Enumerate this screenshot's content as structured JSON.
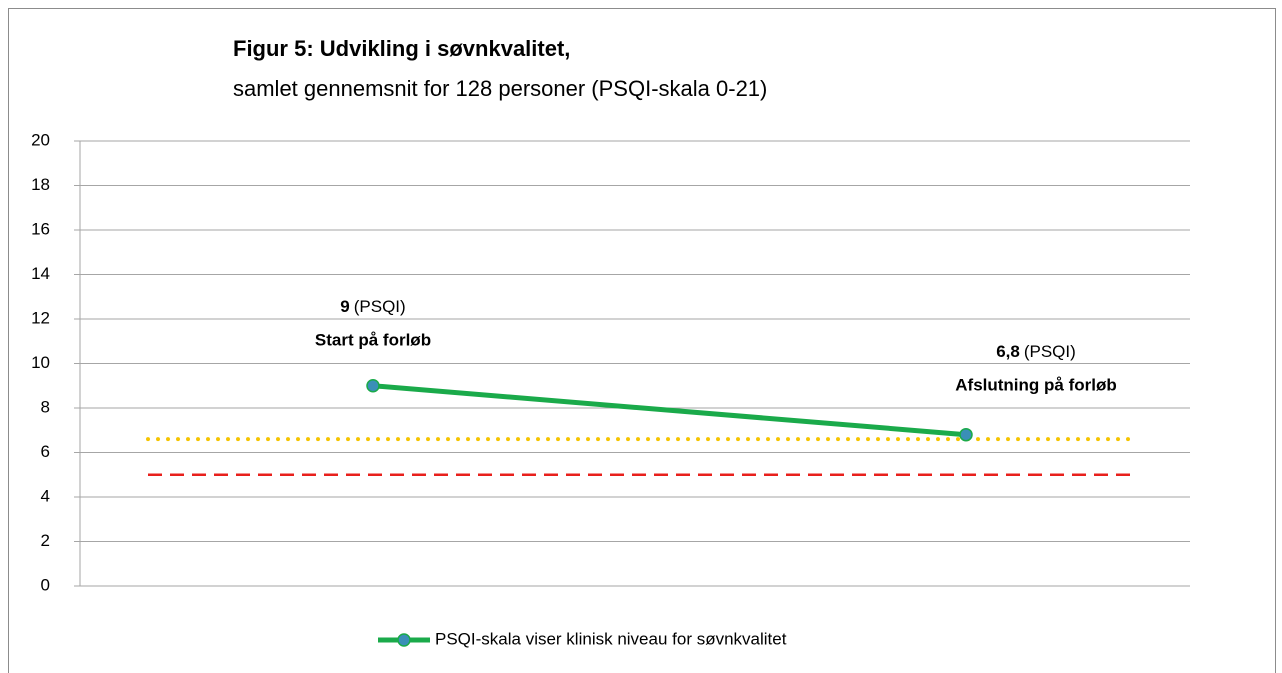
{
  "chart_data": {
    "type": "line",
    "title": "Figur 5: Udvikling i søvnkvalitet,",
    "subtitle": "samlet gennemsnit for 128 personer (PSQI-skala 0-21)",
    "categories": [
      null,
      null
    ],
    "series": [
      {
        "name": "PSQI-skala viser klinisk niveau for søvnkvalitet",
        "color": "#1aaa4a",
        "marker_color": "#3a8fb7",
        "values": [
          9,
          6.8
        ],
        "value_labels": [
          "9",
          "6,8"
        ]
      }
    ],
    "annotations": [
      {
        "unit": "(PSQI)",
        "text": "Start på forløb"
      },
      {
        "unit": "(PSQI)",
        "text": "Afslutning på forløb"
      }
    ],
    "reference_lines": [
      {
        "value": 6.6,
        "color": "#f5c400",
        "style": "dotted"
      },
      {
        "value": 5,
        "color": "#e8201c",
        "style": "dashed"
      }
    ],
    "ylim": [
      0,
      20
    ],
    "yticks": [
      0,
      2,
      4,
      6,
      8,
      10,
      12,
      14,
      16,
      18,
      20
    ],
    "grid": true,
    "legend": "bottom"
  }
}
